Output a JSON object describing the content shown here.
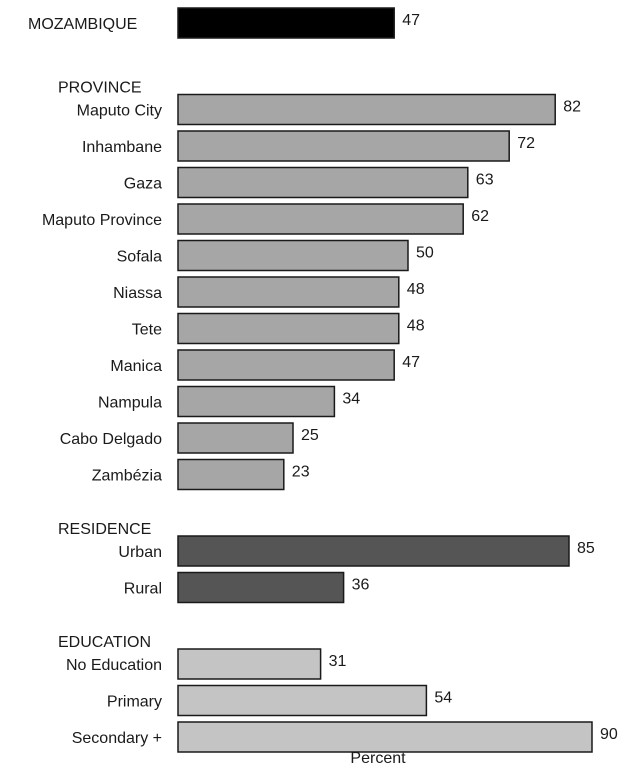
{
  "chart_data": {
    "type": "bar",
    "orientation": "horizontal",
    "xlabel": "Percent",
    "xlim": [
      0,
      100
    ],
    "grid": false,
    "groups": [
      {
        "heading": "",
        "color": "#000000",
        "items": [
          {
            "label": "MOZAMBIQUE",
            "value": 47
          }
        ]
      },
      {
        "heading": "PROVINCE",
        "color": "#a6a6a6",
        "items": [
          {
            "label": "Maputo City",
            "value": 82
          },
          {
            "label": "Inhambane",
            "value": 72
          },
          {
            "label": "Gaza",
            "value": 63
          },
          {
            "label": "Maputo Province",
            "value": 62
          },
          {
            "label": "Sofala",
            "value": 50
          },
          {
            "label": "Niassa",
            "value": 48
          },
          {
            "label": "Tete",
            "value": 48
          },
          {
            "label": "Manica",
            "value": 47
          },
          {
            "label": "Nampula",
            "value": 34
          },
          {
            "label": "Cabo Delgado",
            "value": 25
          },
          {
            "label": "Zambézia",
            "value": 23
          }
        ]
      },
      {
        "heading": "RESIDENCE",
        "color": "#555555",
        "items": [
          {
            "label": "Urban",
            "value": 85
          },
          {
            "label": "Rural",
            "value": 36
          }
        ]
      },
      {
        "heading": "EDUCATION",
        "color": "#c4c4c4",
        "items": [
          {
            "label": "No Education",
            "value": 31
          },
          {
            "label": "Primary",
            "value": 54
          },
          {
            "label": "Secondary +",
            "value": 90
          }
        ]
      }
    ]
  }
}
